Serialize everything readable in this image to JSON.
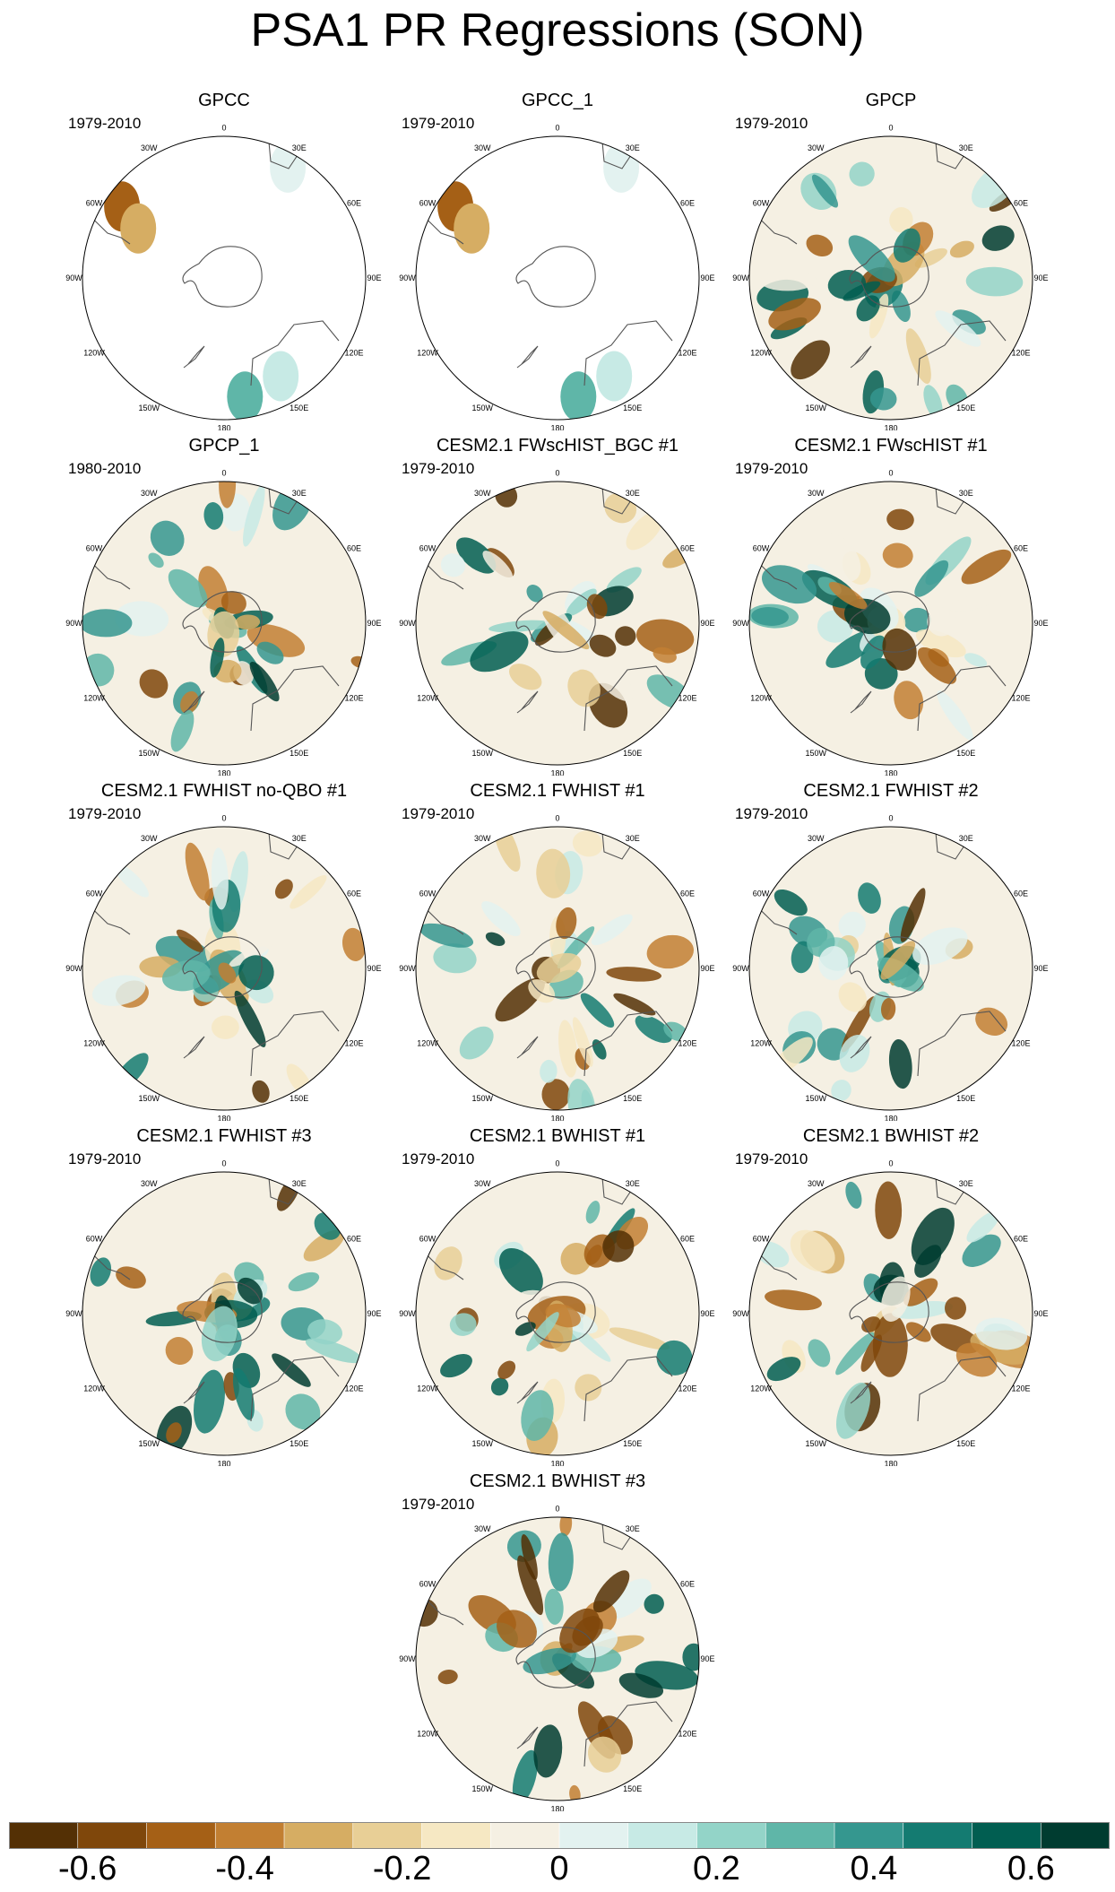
{
  "title": "PSA1 PR Regressions (SON)",
  "colorbar": {
    "colors": [
      "#543005",
      "#7f470b",
      "#a56016",
      "#c27f32",
      "#d6ad63",
      "#e8cf96",
      "#f6e8c3",
      "#f5f0e3",
      "#e3f2f0",
      "#c7eae5",
      "#93d4c8",
      "#5fb6a8",
      "#35978f",
      "#147b71",
      "#015e51",
      "#003c30"
    ],
    "tick_labels": [
      "-0.6",
      "-0.4",
      "-0.2",
      "0",
      "0.2",
      "0.4",
      "0.6"
    ]
  },
  "map_labels": {
    "lon_ticks": [
      "0",
      "30E",
      "60E",
      "90E",
      "120E",
      "150E",
      "180",
      "150W",
      "120W",
      "90W",
      "60W",
      "30W"
    ]
  },
  "chart_data": {
    "type": "polar-stereographic map panels",
    "variable": "PR regression on PSA1",
    "season": "SON",
    "panels": [
      {
        "title": "GPCC",
        "period": "1979-2010",
        "coverage": "land-only"
      },
      {
        "title": "GPCC_1",
        "period": "1979-2010",
        "coverage": "land-only"
      },
      {
        "title": "GPCP",
        "period": "1979-2010",
        "coverage": "global"
      },
      {
        "title": "GPCP_1",
        "period": "1980-2010",
        "coverage": "global"
      },
      {
        "title": "CESM2.1 FWscHIST_BGC #1",
        "period": "1979-2010",
        "coverage": "global"
      },
      {
        "title": "CESM2.1 FWscHIST #1",
        "period": "1979-2010",
        "coverage": "global"
      },
      {
        "title": "CESM2.1 FWHIST no-QBO #1",
        "period": "1979-2010",
        "coverage": "global"
      },
      {
        "title": "CESM2.1 FWHIST #1",
        "period": "1979-2010",
        "coverage": "global"
      },
      {
        "title": "CESM2.1 FWHIST #2",
        "period": "1979-2010",
        "coverage": "global"
      },
      {
        "title": "CESM2.1 FWHIST #3",
        "period": "1979-2010",
        "coverage": "global"
      },
      {
        "title": "CESM2.1 BWHIST #1",
        "period": "1979-2010",
        "coverage": "global"
      },
      {
        "title": "CESM2.1 BWHIST #2",
        "period": "1979-2010",
        "coverage": "global"
      },
      {
        "title": "CESM2.1 BWHIST #3",
        "period": "1979-2010",
        "coverage": "global"
      }
    ],
    "colorbar_range": [
      -0.7,
      0.7
    ],
    "colorbar_step": 0.1
  }
}
